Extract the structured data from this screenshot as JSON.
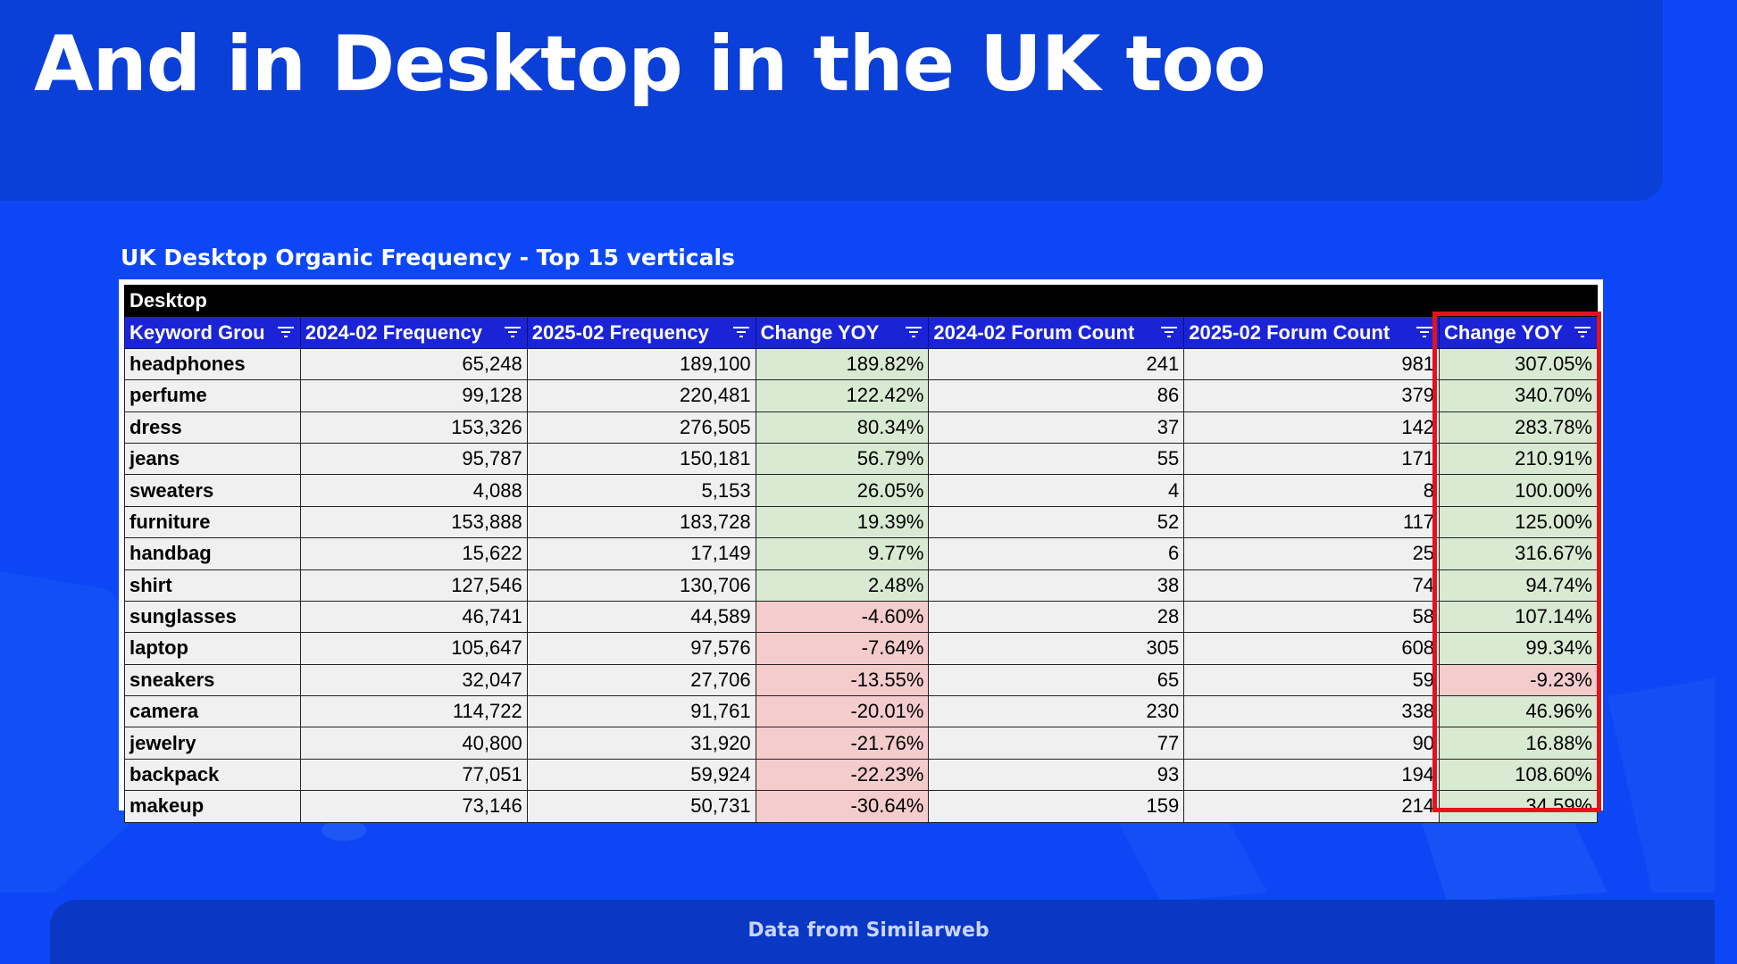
{
  "slide": {
    "title": "And in Desktop in the UK too",
    "table_title": "UK Desktop Organic Frequency - Top 15 verticals",
    "footer": "Data from Similarweb"
  },
  "table": {
    "section_label": "Desktop",
    "headers": [
      "Keyword Grou",
      "2024-02 Frequency",
      "2025-02 Frequency",
      "Change YOY",
      "2024-02  Forum Count",
      "2025-02 Forum Count",
      "Change YOY"
    ],
    "rows": [
      {
        "keyword": "headphones",
        "freq_2024": "65,248",
        "freq_2025": "189,100",
        "change_freq": "189.82%",
        "forum_2024": "241",
        "forum_2025": "981",
        "change_forum": "307.05%"
      },
      {
        "keyword": "perfume",
        "freq_2024": "99,128",
        "freq_2025": "220,481",
        "change_freq": "122.42%",
        "forum_2024": "86",
        "forum_2025": "379",
        "change_forum": "340.70%"
      },
      {
        "keyword": "dress",
        "freq_2024": "153,326",
        "freq_2025": "276,505",
        "change_freq": "80.34%",
        "forum_2024": "37",
        "forum_2025": "142",
        "change_forum": "283.78%"
      },
      {
        "keyword": "jeans",
        "freq_2024": "95,787",
        "freq_2025": "150,181",
        "change_freq": "56.79%",
        "forum_2024": "55",
        "forum_2025": "171",
        "change_forum": "210.91%"
      },
      {
        "keyword": "sweaters",
        "freq_2024": "4,088",
        "freq_2025": "5,153",
        "change_freq": "26.05%",
        "forum_2024": "4",
        "forum_2025": "8",
        "change_forum": "100.00%"
      },
      {
        "keyword": "furniture",
        "freq_2024": "153,888",
        "freq_2025": "183,728",
        "change_freq": "19.39%",
        "forum_2024": "52",
        "forum_2025": "117",
        "change_forum": "125.00%"
      },
      {
        "keyword": "handbag",
        "freq_2024": "15,622",
        "freq_2025": "17,149",
        "change_freq": "9.77%",
        "forum_2024": "6",
        "forum_2025": "25",
        "change_forum": "316.67%"
      },
      {
        "keyword": "shirt",
        "freq_2024": "127,546",
        "freq_2025": "130,706",
        "change_freq": "2.48%",
        "forum_2024": "38",
        "forum_2025": "74",
        "change_forum": "94.74%"
      },
      {
        "keyword": "sunglasses",
        "freq_2024": "46,741",
        "freq_2025": "44,589",
        "change_freq": "-4.60%",
        "forum_2024": "28",
        "forum_2025": "58",
        "change_forum": "107.14%"
      },
      {
        "keyword": "laptop",
        "freq_2024": "105,647",
        "freq_2025": "97,576",
        "change_freq": "-7.64%",
        "forum_2024": "305",
        "forum_2025": "608",
        "change_forum": "99.34%"
      },
      {
        "keyword": "sneakers",
        "freq_2024": "32,047",
        "freq_2025": "27,706",
        "change_freq": "-13.55%",
        "forum_2024": "65",
        "forum_2025": "59",
        "change_forum": "-9.23%"
      },
      {
        "keyword": "camera",
        "freq_2024": "114,722",
        "freq_2025": "91,761",
        "change_freq": "-20.01%",
        "forum_2024": "230",
        "forum_2025": "338",
        "change_forum": "46.96%"
      },
      {
        "keyword": "jewelry",
        "freq_2024": "40,800",
        "freq_2025": "31,920",
        "change_freq": "-21.76%",
        "forum_2024": "77",
        "forum_2025": "90",
        "change_forum": "16.88%"
      },
      {
        "keyword": "backpack",
        "freq_2024": "77,051",
        "freq_2025": "59,924",
        "change_freq": "-22.23%",
        "forum_2024": "93",
        "forum_2025": "194",
        "change_forum": "108.60%"
      },
      {
        "keyword": "makeup",
        "freq_2024": "73,146",
        "freq_2025": "50,731",
        "change_freq": "-30.64%",
        "forum_2024": "159",
        "forum_2025": "214",
        "change_forum": "34.59%"
      }
    ]
  },
  "colors": {
    "background": "#0d47f5",
    "header_fill": "#1a24d6",
    "positive_fill": "#d9ead3",
    "negative_fill": "#f4cccc",
    "highlight_border": "#e5111b"
  },
  "icons": {
    "header_filter": "filter-icon"
  }
}
